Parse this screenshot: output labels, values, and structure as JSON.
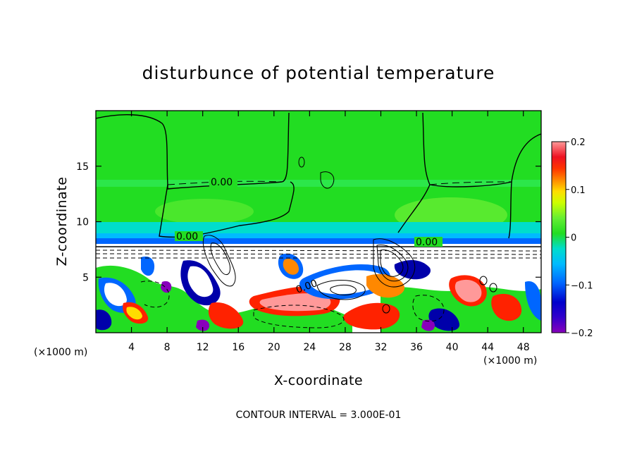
{
  "chart_data": {
    "type": "heatmap",
    "title": "disturbunce of potential temperature",
    "xlabel": "X-coordinate",
    "ylabel": "Z-coordinate",
    "x_unit_left": "(×1000 m)",
    "x_unit_right": "(×1000 m)",
    "xlim": [
      0,
      50
    ],
    "ylim": [
      0,
      20
    ],
    "xticks": [
      4,
      8,
      12,
      16,
      20,
      24,
      28,
      32,
      36,
      40,
      44,
      48
    ],
    "yticks": [
      5,
      10,
      15
    ],
    "colorbar": {
      "min": -0.2,
      "max": 0.2,
      "ticks": [
        "0.2",
        "0.1",
        "0",
        "−0.1",
        "−0.2"
      ]
    },
    "contour_labels": [
      "0.00",
      "0.00",
      "0.00",
      "0.00"
    ],
    "note": "CONTOUR INTERVAL = 3.000E-01"
  },
  "colors": {
    "background": "#ffffff",
    "green": "#22dd22",
    "light_green": "#66ee33",
    "cyan": "#00ddcc",
    "blue": "#0066ff",
    "navy": "#0000aa",
    "purple": "#8800bb",
    "yellow": "#ccff00",
    "orange": "#ff8800",
    "red": "#ff2200",
    "pink": "#ff9999"
  }
}
